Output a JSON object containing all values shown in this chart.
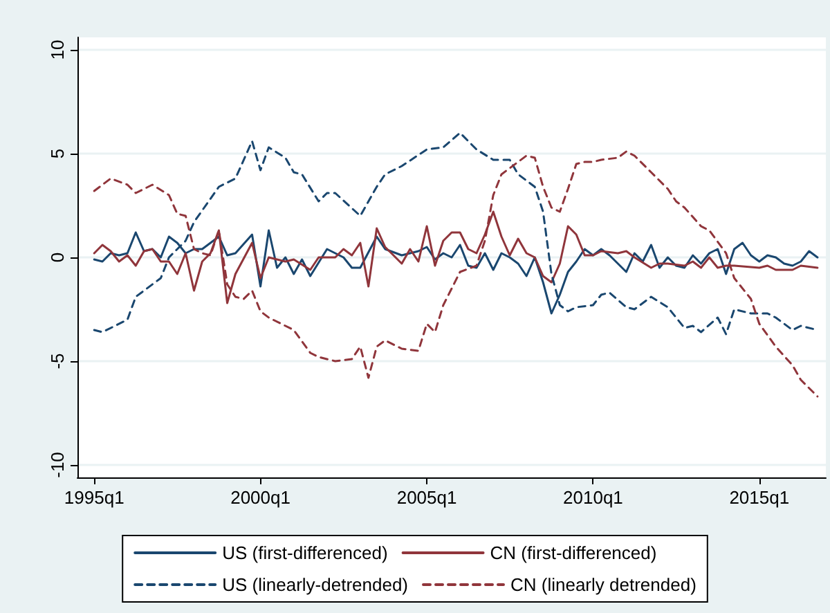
{
  "chart_data": {
    "type": "line",
    "xlim": [
      "1994-07",
      "2017-01"
    ],
    "xticks": [
      {
        "value": "1995-01",
        "label": "1995q1"
      },
      {
        "value": "2000-01",
        "label": "2000q1"
      },
      {
        "value": "2005-01",
        "label": "2005q1"
      },
      {
        "value": "2010-01",
        "label": "2010q1"
      },
      {
        "value": "2015-01",
        "label": "2015q1"
      }
    ],
    "ylim": [
      -10.6,
      10.6
    ],
    "yticks": [
      -10,
      -5,
      0,
      5,
      10
    ],
    "grid": "y",
    "legend": "bottom",
    "marker": "none",
    "series": [
      {
        "name": "US (first-differenced)",
        "color": "#1a476f",
        "line_style": "solid",
        "x": [
          "1995-01",
          "1995-04",
          "1995-07",
          "1995-10",
          "1996-01",
          "1996-04",
          "1996-07",
          "1996-10",
          "1997-01",
          "1997-04",
          "1997-07",
          "1997-10",
          "1998-01",
          "1998-04",
          "1998-10",
          "1999-01",
          "1999-04",
          "1999-10",
          "2000-01",
          "2000-04",
          "2000-07",
          "2000-10",
          "2001-01",
          "2001-04",
          "2001-07",
          "2002-01",
          "2002-07",
          "2002-10",
          "2003-01",
          "2003-07",
          "2003-10",
          "2004-04",
          "2004-10",
          "2005-01",
          "2005-04",
          "2005-07",
          "2005-10",
          "2006-01",
          "2006-04",
          "2006-07",
          "2006-10",
          "2007-01",
          "2007-04",
          "2007-07",
          "2007-10",
          "2008-01",
          "2008-04",
          "2008-07",
          "2008-10",
          "2009-01",
          "2009-04",
          "2009-07",
          "2009-10",
          "2010-01",
          "2010-04",
          "2010-07",
          "2011-01",
          "2011-04",
          "2011-07",
          "2011-10",
          "2012-01",
          "2012-04",
          "2012-07",
          "2012-10",
          "2013-01",
          "2013-04",
          "2013-07",
          "2013-10",
          "2014-01",
          "2014-04",
          "2014-07",
          "2014-10",
          "2015-01",
          "2015-04",
          "2015-07",
          "2015-10",
          "2016-01",
          "2016-04",
          "2016-07",
          "2016-10"
        ],
        "values": [
          -0.1,
          -0.2,
          0.2,
          0.1,
          0.2,
          1.2,
          0.3,
          0.4,
          0,
          1.0,
          0.7,
          0.2,
          0.4,
          0.4,
          1.0,
          0.1,
          0.2,
          1.1,
          -1.4,
          1.3,
          -0.5,
          0,
          -0.8,
          -0.1,
          -0.9,
          0.4,
          0,
          -0.5,
          -0.5,
          1.0,
          0.4,
          0.1,
          0.3,
          0.5,
          -0.1,
          0.2,
          0,
          0.6,
          -0.4,
          -0.5,
          0.2,
          -0.6,
          0.2,
          0,
          -0.3,
          -0.9,
          0,
          -1.2,
          -2.7,
          -1.8,
          -0.7,
          -0.2,
          0.4,
          0.1,
          0.4,
          0.1,
          -0.7,
          0.2,
          -0.2,
          0.6,
          -0.5,
          0,
          -0.4,
          -0.5,
          0.1,
          -0.3,
          0.2,
          0.4,
          -0.8,
          0.4,
          0.7,
          0.1,
          -0.2,
          0.1,
          0,
          -0.3,
          -0.4,
          -0.2,
          0.3,
          0
        ]
      },
      {
        "name": "CN (first-differenced)",
        "color": "#90353b",
        "line_style": "solid",
        "x": [
          "1995-01",
          "1995-04",
          "1995-07",
          "1995-10",
          "1996-01",
          "1996-04",
          "1996-07",
          "1996-10",
          "1997-01",
          "1997-04",
          "1997-07",
          "1997-10",
          "1998-01",
          "1998-04",
          "1998-07",
          "1998-10",
          "1999-01",
          "1999-04",
          "1999-10",
          "2000-01",
          "2000-04",
          "2000-10",
          "2001-01",
          "2001-07",
          "2001-10",
          "2002-04",
          "2002-07",
          "2002-10",
          "2003-01",
          "2003-04",
          "2003-07",
          "2003-10",
          "2004-01",
          "2004-04",
          "2004-07",
          "2004-10",
          "2005-01",
          "2005-04",
          "2005-07",
          "2005-10",
          "2006-01",
          "2006-04",
          "2006-07",
          "2006-10",
          "2007-01",
          "2007-04",
          "2007-07",
          "2007-10",
          "2008-01",
          "2008-04",
          "2008-07",
          "2008-10",
          "2009-01",
          "2009-04",
          "2009-07",
          "2009-10",
          "2010-01",
          "2010-04",
          "2010-10",
          "2011-01",
          "2011-04",
          "2011-10",
          "2012-01",
          "2012-04",
          "2012-10",
          "2013-01",
          "2013-04",
          "2013-07",
          "2013-10",
          "2014-01",
          "2014-04",
          "2015-01",
          "2015-04",
          "2015-07",
          "2016-01",
          "2016-04",
          "2016-10"
        ],
        "values": [
          0.2,
          0.6,
          0.3,
          -0.2,
          0.1,
          -0.4,
          0.3,
          0.4,
          -0.2,
          -0.2,
          -0.8,
          0.2,
          -1.6,
          -0.2,
          0.2,
          1.3,
          -2.2,
          -0.8,
          0.7,
          -1.0,
          0,
          -0.2,
          -0.1,
          -0.6,
          0,
          0,
          0.4,
          0.1,
          0.7,
          -1.4,
          1.4,
          0.5,
          0.1,
          -0.3,
          0.4,
          -0.2,
          1.5,
          -0.4,
          0.8,
          1.2,
          1.2,
          0.4,
          0.2,
          1.1,
          2.2,
          1.0,
          0.1,
          0.9,
          0.2,
          0,
          -0.9,
          -1.2,
          -0.3,
          1.5,
          1.1,
          0.1,
          0.1,
          0.3,
          0.2,
          0.3,
          0,
          -0.5,
          -0.3,
          -0.3,
          -0.4,
          -0.2,
          -0.5,
          0,
          -0.5,
          -0.4,
          -0.4,
          -0.5,
          -0.4,
          -0.6,
          -0.6,
          -0.4,
          -0.5
        ]
      },
      {
        "name": "US (linearly-detrended)",
        "color": "#1a476f",
        "line_style": "dashed",
        "x": [
          "1995-01",
          "1995-04",
          "1996-01",
          "1996-04",
          "1997-01",
          "1997-04",
          "1997-10",
          "1998-01",
          "1998-10",
          "1999-04",
          "1999-10",
          "2000-01",
          "2000-04",
          "2000-10",
          "2001-01",
          "2001-04",
          "2001-10",
          "2002-01",
          "2002-04",
          "2003-01",
          "2003-07",
          "2003-10",
          "2004-04",
          "2005-01",
          "2005-07",
          "2006-01",
          "2006-07",
          "2007-01",
          "2007-07",
          "2007-10",
          "2008-04",
          "2008-07",
          "2008-10",
          "2009-01",
          "2009-04",
          "2009-07",
          "2010-01",
          "2010-04",
          "2010-07",
          "2011-01",
          "2011-04",
          "2011-10",
          "2012-04",
          "2012-10",
          "2013-01",
          "2013-04",
          "2013-10",
          "2014-01",
          "2014-04",
          "2014-10",
          "2015-04",
          "2015-07",
          "2016-01",
          "2016-04",
          "2016-10"
        ],
        "values": [
          -3.5,
          -3.6,
          -3.0,
          -1.9,
          -1.0,
          0,
          0.8,
          1.7,
          3.4,
          3.8,
          5.6,
          4.2,
          5.3,
          4.8,
          4.1,
          4.0,
          2.7,
          3.1,
          3.1,
          2.0,
          3.4,
          4.0,
          4.4,
          5.2,
          5.3,
          6.0,
          5.2,
          4.7,
          4.7,
          4.0,
          3.4,
          2.2,
          -0.8,
          -2.3,
          -2.6,
          -2.4,
          -2.3,
          -1.8,
          -1.7,
          -2.4,
          -2.5,
          -1.9,
          -2.4,
          -3.4,
          -3.3,
          -3.6,
          -2.9,
          -3.7,
          -2.5,
          -2.7,
          -2.7,
          -2.9,
          -3.5,
          -3.3,
          -3.5
        ]
      },
      {
        "name": "CN (linearly detrended)",
        "color": "#90353b",
        "line_style": "dashed",
        "x": [
          "1995-01",
          "1995-07",
          "1996-01",
          "1996-04",
          "1996-10",
          "1997-04",
          "1997-07",
          "1997-10",
          "1998-01",
          "1998-04",
          "1998-07",
          "1998-10",
          "1999-01",
          "1999-04",
          "1999-07",
          "1999-10",
          "2000-01",
          "2000-04",
          "2001-01",
          "2001-07",
          "2001-10",
          "2002-04",
          "2002-10",
          "2003-01",
          "2003-04",
          "2003-07",
          "2003-10",
          "2004-04",
          "2004-10",
          "2005-01",
          "2005-04",
          "2005-07",
          "2006-01",
          "2006-07",
          "2006-10",
          "2007-01",
          "2007-04",
          "2007-10",
          "2008-01",
          "2008-04",
          "2008-07",
          "2008-10",
          "2009-01",
          "2009-04",
          "2009-07",
          "2009-10",
          "2010-01",
          "2010-04",
          "2010-10",
          "2011-01",
          "2011-04",
          "2011-10",
          "2012-04",
          "2012-07",
          "2012-10",
          "2013-04",
          "2013-07",
          "2014-01",
          "2014-04",
          "2014-10",
          "2015-01",
          "2015-07",
          "2016-01",
          "2016-04",
          "2016-10"
        ],
        "values": [
          3.2,
          3.8,
          3.5,
          3.1,
          3.5,
          3.0,
          2.1,
          2.0,
          0.4,
          0.2,
          0.1,
          1.3,
          -1.3,
          -1.9,
          -2.0,
          -1.6,
          -2.6,
          -2.9,
          -3.5,
          -4.6,
          -4.8,
          -5.0,
          -4.9,
          -4.3,
          -5.8,
          -4.3,
          -4.0,
          -4.4,
          -4.5,
          -3.2,
          -3.6,
          -2.3,
          -0.7,
          -0.4,
          0.8,
          3.0,
          4.0,
          4.6,
          4.9,
          4.8,
          3.4,
          2.4,
          2.2,
          3.3,
          4.5,
          4.6,
          4.6,
          4.7,
          4.8,
          5.1,
          4.9,
          4.1,
          3.3,
          2.7,
          2.4,
          1.5,
          1.3,
          0.2,
          -1.0,
          -2.0,
          -3.2,
          -4.3,
          -5.2,
          -5.9,
          -6.7
        ]
      }
    ]
  }
}
